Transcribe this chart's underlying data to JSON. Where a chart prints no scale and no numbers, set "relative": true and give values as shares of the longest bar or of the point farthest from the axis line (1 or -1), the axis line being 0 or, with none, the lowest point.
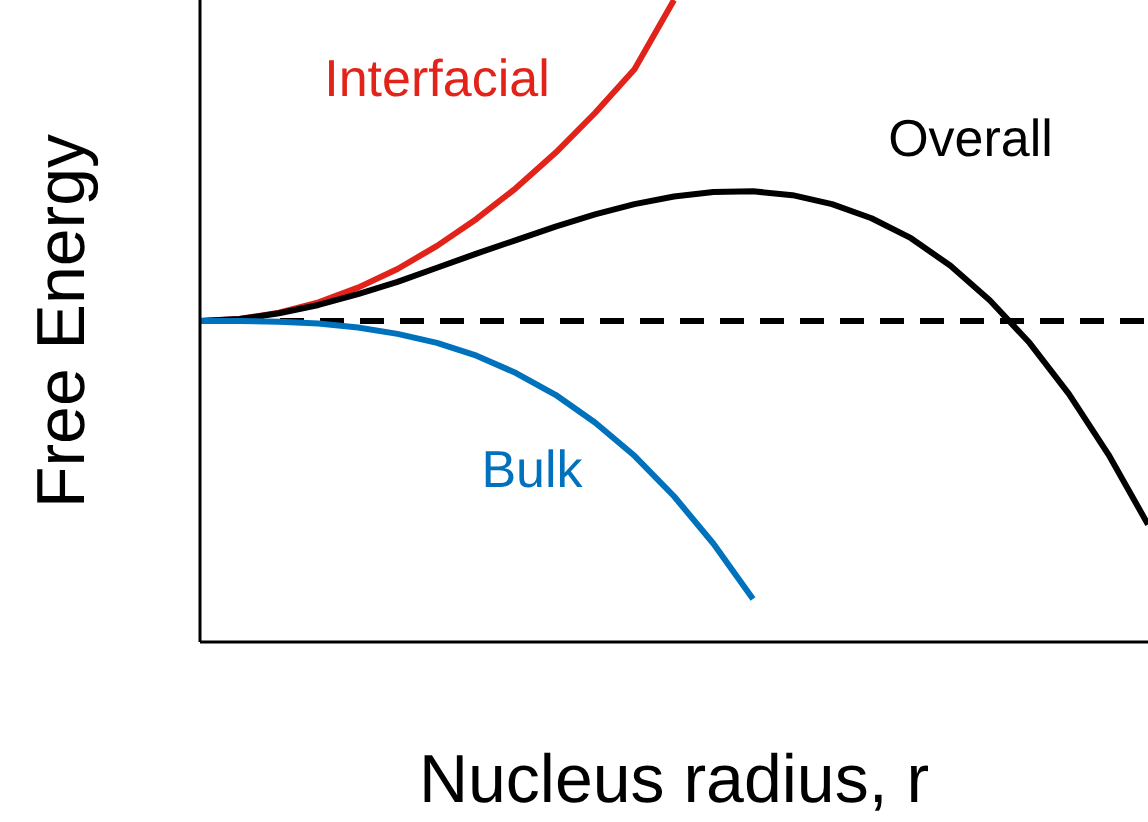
{
  "chart_data": {
    "type": "line",
    "relative": true,
    "xlabel": "Nucleus radius, r",
    "ylabel": "Free Energy",
    "legend": false,
    "marker": "none",
    "line_style": "solid",
    "categories": [
      null,
      null,
      null,
      null,
      null,
      null,
      null,
      null,
      null,
      null,
      null,
      null,
      null,
      null,
      null,
      null,
      null,
      null,
      null,
      null,
      null,
      null,
      null,
      null,
      null
    ],
    "series": [
      {
        "name": "Interfacial",
        "color": "#e2231a",
        "values": [
          0.5,
          0.503,
          0.513,
          0.529,
          0.552,
          0.581,
          0.617,
          0.659,
          0.707,
          0.762,
          0.824,
          0.892,
          1,
          null,
          null,
          null,
          null,
          null,
          null,
          null,
          null,
          null,
          null,
          null,
          null
        ]
      },
      {
        "name": "Overall",
        "color": "#000000",
        "values": [
          0.5,
          0.503,
          0.512,
          0.525,
          0.542,
          0.561,
          0.583,
          0.605,
          0.626,
          0.647,
          0.666,
          0.682,
          0.694,
          0.701,
          0.702,
          0.696,
          0.682,
          0.66,
          0.629,
          0.586,
          0.532,
          0.466,
          0.386,
          0.292,
          0.183
        ]
      },
      {
        "name": "Bulk",
        "color": "#0072bd",
        "values": [
          0.5,
          0.5,
          0.499,
          0.496,
          0.49,
          0.48,
          0.466,
          0.446,
          0.419,
          0.385,
          0.342,
          0.29,
          0.227,
          0.153,
          0.067,
          null,
          null,
          null,
          null,
          null,
          null,
          null,
          null,
          null,
          null
        ]
      }
    ],
    "ref_lines": [
      {
        "axis": "y",
        "value": 0.5,
        "color": "#000000",
        "line_style": "dashed"
      }
    ]
  }
}
